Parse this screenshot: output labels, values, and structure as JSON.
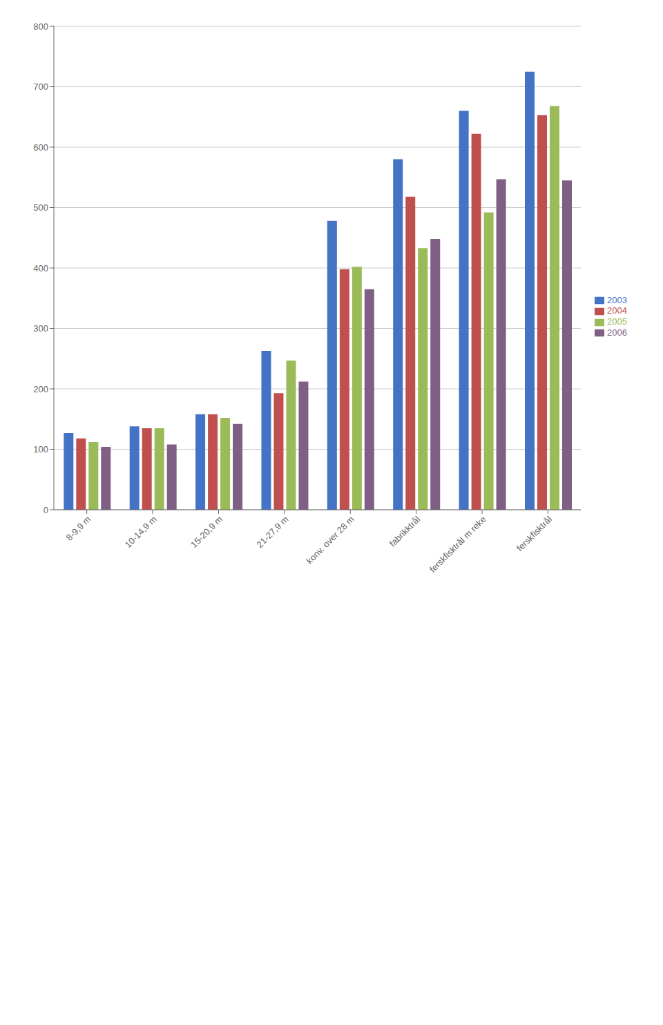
{
  "chart_data": {
    "type": "bar",
    "categories": [
      "8-9,9 m",
      "10-14,9 m",
      "15-20,9 m",
      "21-27,9 m",
      "konv. over 28 m",
      "fabrikktrål",
      "ferskfisktrål m reke",
      "ferskfisktrål"
    ],
    "series": [
      {
        "name": "2003",
        "color": "#4472C4",
        "values": [
          127,
          138,
          158,
          263,
          478,
          580,
          660,
          725
        ]
      },
      {
        "name": "2004",
        "color": "#C0504D",
        "values": [
          118,
          135,
          158,
          193,
          398,
          518,
          622,
          653
        ]
      },
      {
        "name": "2005",
        "color": "#9BBB59",
        "values": [
          112,
          135,
          152,
          247,
          402,
          433,
          492,
          668
        ]
      },
      {
        "name": "2006",
        "color": "#7F6084",
        "values": [
          104,
          108,
          142,
          212,
          365,
          448,
          547,
          545
        ]
      }
    ],
    "ylim": [
      0,
      800
    ],
    "yticks": [
      0,
      100,
      200,
      300,
      400,
      500,
      600,
      700,
      800
    ],
    "grid": true,
    "legend": "right"
  }
}
